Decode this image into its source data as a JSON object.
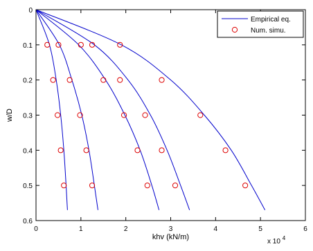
{
  "chart_data": {
    "type": "line",
    "xlabel": "khv (kN/m)",
    "ylabel": "w/D",
    "x_multiplier_label": "x 10",
    "x_multiplier_exponent": "4",
    "xlim": [
      0,
      6
    ],
    "ylim": [
      0,
      0.6
    ],
    "y_reversed": true,
    "x_ticks": [
      "0",
      "1",
      "2",
      "3",
      "4",
      "5",
      "6"
    ],
    "y_ticks": [
      "0",
      "0.1",
      "0.2",
      "0.3",
      "0.4",
      "0.5",
      "0.6"
    ],
    "grid": false,
    "legend_position": "top-right",
    "legend": [
      {
        "label": "Empirical eq.",
        "style": "line",
        "color": "#0000cc"
      },
      {
        "label": "Num. simu.",
        "style": "circle",
        "color": "#dd0000"
      }
    ],
    "series": [
      {
        "style": "line",
        "color": "#0000cc",
        "x": [
          0,
          0.3,
          0.45,
          0.55,
          0.62,
          0.67,
          0.7
        ],
        "y": [
          0,
          0.1,
          0.2,
          0.3,
          0.4,
          0.5,
          0.57
        ]
      },
      {
        "style": "line",
        "color": "#0000cc",
        "x": [
          0,
          0.52,
          0.8,
          1.02,
          1.18,
          1.3,
          1.38
        ],
        "y": [
          0,
          0.1,
          0.2,
          0.3,
          0.4,
          0.5,
          0.57
        ]
      },
      {
        "style": "line",
        "color": "#0000cc",
        "x": [
          0,
          0.95,
          1.55,
          1.98,
          2.32,
          2.58,
          2.74
        ],
        "y": [
          0,
          0.1,
          0.2,
          0.3,
          0.4,
          0.5,
          0.57
        ]
      },
      {
        "style": "line",
        "color": "#0000cc",
        "x": [
          0,
          1.3,
          2.05,
          2.55,
          2.92,
          3.22,
          3.42
        ],
        "y": [
          0,
          0.1,
          0.2,
          0.3,
          0.4,
          0.5,
          0.57
        ]
      },
      {
        "style": "line",
        "color": "#0000cc",
        "x": [
          0,
          1.9,
          3.0,
          3.75,
          4.35,
          4.8,
          5.1
        ],
        "y": [
          0,
          0.1,
          0.2,
          0.3,
          0.4,
          0.5,
          0.57
        ]
      },
      {
        "style": "circle",
        "color": "#dd0000",
        "x": [
          0.25,
          0.38,
          0.48,
          0.55,
          0.62
        ],
        "y": [
          0.1,
          0.2,
          0.3,
          0.4,
          0.5
        ]
      },
      {
        "style": "circle",
        "color": "#dd0000",
        "x": [
          0.5,
          0.75,
          0.98,
          1.12,
          1.25
        ],
        "y": [
          0.1,
          0.2,
          0.3,
          0.4,
          0.5
        ]
      },
      {
        "style": "circle",
        "color": "#dd0000",
        "x": [
          1.0,
          1.5,
          1.96,
          2.26,
          2.48
        ],
        "y": [
          0.1,
          0.2,
          0.3,
          0.4,
          0.5
        ]
      },
      {
        "style": "circle",
        "color": "#dd0000",
        "x": [
          1.25,
          1.87,
          2.43,
          2.8,
          3.1
        ],
        "y": [
          0.1,
          0.2,
          0.3,
          0.4,
          0.5
        ]
      },
      {
        "style": "circle",
        "color": "#dd0000",
        "x": [
          1.87,
          2.8,
          3.66,
          4.22,
          4.66
        ],
        "y": [
          0.1,
          0.2,
          0.3,
          0.4,
          0.5
        ]
      }
    ]
  }
}
